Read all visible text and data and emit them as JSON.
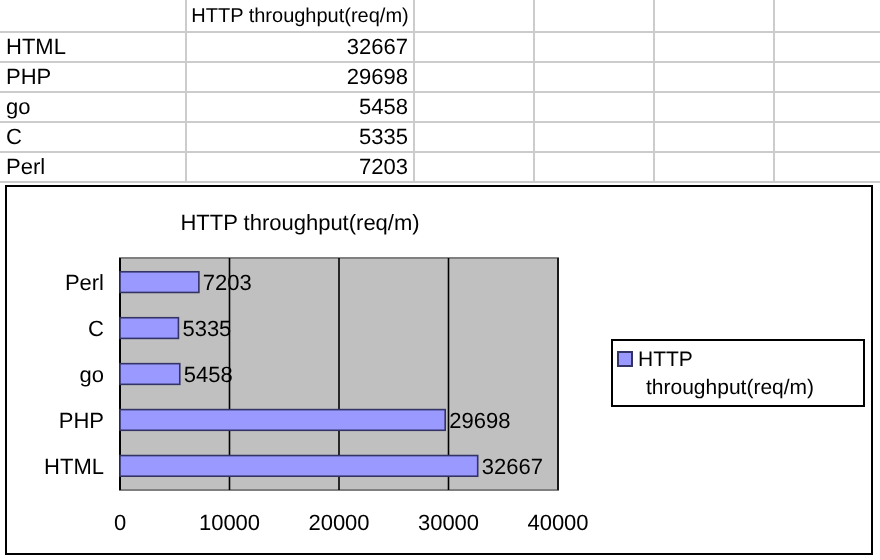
{
  "chart_data": {
    "type": "bar",
    "orientation": "horizontal",
    "title": "HTTP throughput(req/m)",
    "categories": [
      "Perl",
      "C",
      "go",
      "PHP",
      "HTML"
    ],
    "series": [
      {
        "name": "HTTP throughput(req/m)",
        "color": "#9999ff",
        "values": [
          7203,
          5335,
          5458,
          29698,
          32667
        ]
      }
    ],
    "xlim": [
      0,
      40000
    ],
    "xticks": [
      0,
      10000,
      20000,
      30000,
      40000
    ],
    "grid": "x",
    "legend": "right",
    "data_labels": true,
    "annotations": [
      "32667",
      "29698",
      "5458",
      "5335",
      "7203"
    ]
  }
}
